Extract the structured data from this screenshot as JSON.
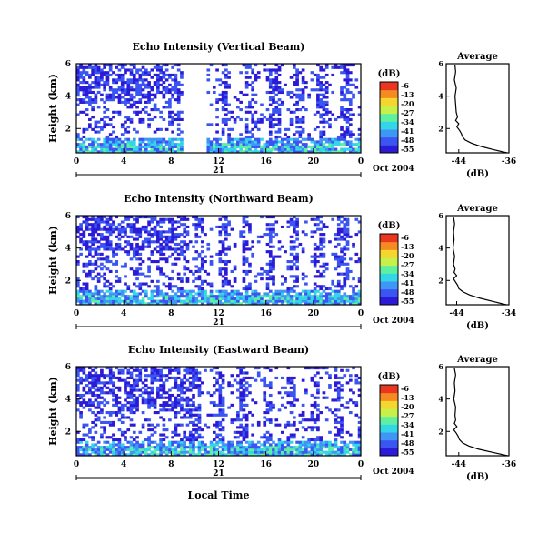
{
  "colors": {
    "background": "#ffffff",
    "axis": "#000000",
    "colormap": [
      "#2c1bd6",
      "#3b55f2",
      "#3f96f5",
      "#33d6e6",
      "#5ef0a0",
      "#c8f04a",
      "#f5d62e",
      "#f58a22",
      "#e83620"
    ]
  },
  "footer": {
    "xlabel": "Local Time"
  },
  "chart_data": [
    {
      "type": "heatmap",
      "title": "Echo Intensity (Vertical Beam)",
      "ylabel": "Height (km)",
      "yticks": [
        "2",
        "4",
        "6"
      ],
      "ylim": [
        0.5,
        6.0
      ],
      "xticks": [
        "0",
        "4",
        "8",
        "12",
        "16",
        "20",
        "0"
      ],
      "xlim": [
        0,
        24
      ],
      "date_label": "Oct 2004",
      "day_label": "21",
      "colorbar": {
        "unit": "(dB)",
        "ticks": [
          "-6",
          "-13",
          "-20",
          "-27",
          "-34",
          "-41",
          "-48",
          "-55"
        ],
        "range": [
          -55,
          -6
        ]
      },
      "data_present_hours": [
        [
          0,
          9.0
        ],
        [
          11.0,
          24.0
        ]
      ],
      "profile": {
        "title": "Average",
        "xlabel": "(dB)",
        "xticks": [
          "-44",
          "-36"
        ],
        "xlim": [
          -46,
          -36
        ],
        "yticks": [
          "2",
          "4",
          "6"
        ],
        "heights": [
          0.5,
          0.7,
          0.9,
          1.1,
          1.3,
          1.5,
          1.7,
          1.9,
          2.1,
          2.3,
          2.5,
          2.7,
          3.0,
          3.5,
          4.0,
          4.5,
          5.0,
          5.5,
          5.9
        ],
        "values": [
          -36.3,
          -38.5,
          -40.5,
          -42.0,
          -43.0,
          -43.4,
          -43.6,
          -43.9,
          -44.3,
          -44.0,
          -44.5,
          -44.2,
          -44.4,
          -44.5,
          -44.6,
          -44.4,
          -44.7,
          -44.5,
          -44.6
        ]
      }
    },
    {
      "type": "heatmap",
      "title": "Echo Intensity (Northward Beam)",
      "ylabel": "Height (km)",
      "yticks": [
        "2",
        "4",
        "6"
      ],
      "ylim": [
        0.5,
        6.0
      ],
      "xticks": [
        "0",
        "4",
        "8",
        "12",
        "16",
        "20",
        "0"
      ],
      "xlim": [
        0,
        24
      ],
      "date_label": "Oct 2004",
      "day_label": "21",
      "colorbar": {
        "unit": "(dB)",
        "ticks": [
          "-6",
          "-13",
          "-20",
          "-27",
          "-34",
          "-41",
          "-48",
          "-55"
        ],
        "range": [
          -55,
          -6
        ]
      },
      "data_present_hours": [
        [
          0,
          24.0
        ]
      ],
      "profile": {
        "title": "Average",
        "xlabel": "(dB)",
        "xticks": [
          "-44",
          "-34"
        ],
        "xlim": [
          -46,
          -34
        ],
        "yticks": [
          "2",
          "4",
          "6"
        ],
        "heights": [
          0.5,
          0.7,
          0.9,
          1.1,
          1.3,
          1.5,
          1.7,
          1.9,
          2.1,
          2.3,
          2.5,
          2.7,
          3.0,
          3.5,
          4.0,
          4.5,
          5.0,
          5.5,
          5.9
        ],
        "values": [
          -34.5,
          -37.0,
          -39.5,
          -41.5,
          -42.8,
          -43.6,
          -43.8,
          -44.2,
          -44.6,
          -44.0,
          -44.5,
          -44.3,
          -44.6,
          -44.4,
          -44.7,
          -44.5,
          -44.6,
          -44.4,
          -44.6
        ]
      }
    },
    {
      "type": "heatmap",
      "title": "Echo Intensity (Eastward Beam)",
      "ylabel": "Height (km)",
      "yticks": [
        "2",
        "4",
        "6"
      ],
      "ylim": [
        0.5,
        6.0
      ],
      "xticks": [
        "0",
        "4",
        "8",
        "12",
        "16",
        "20",
        "0"
      ],
      "xlim": [
        0,
        24
      ],
      "date_label": "Oct 2004",
      "day_label": "21",
      "colorbar": {
        "unit": "(dB)",
        "ticks": [
          "-6",
          "-13",
          "-20",
          "-27",
          "-34",
          "-41",
          "-48",
          "-55"
        ],
        "range": [
          -55,
          -6
        ]
      },
      "data_present_hours": [
        [
          0,
          24.0
        ]
      ],
      "profile": {
        "title": "Average",
        "xlabel": "(dB)",
        "xticks": [
          "-44",
          "-36"
        ],
        "xlim": [
          -46,
          -36
        ],
        "yticks": [
          "2",
          "4",
          "6"
        ],
        "heights": [
          0.5,
          0.7,
          0.9,
          1.1,
          1.3,
          1.5,
          1.7,
          1.9,
          2.1,
          2.3,
          2.5,
          2.7,
          3.0,
          3.5,
          4.0,
          4.5,
          5.0,
          5.5,
          5.9
        ],
        "values": [
          -36.2,
          -38.5,
          -40.8,
          -42.4,
          -43.4,
          -43.9,
          -44.1,
          -44.4,
          -44.8,
          -44.3,
          -44.7,
          -44.5,
          -44.6,
          -44.5,
          -44.8,
          -44.6,
          -44.7,
          -44.5,
          -44.7
        ]
      }
    }
  ]
}
